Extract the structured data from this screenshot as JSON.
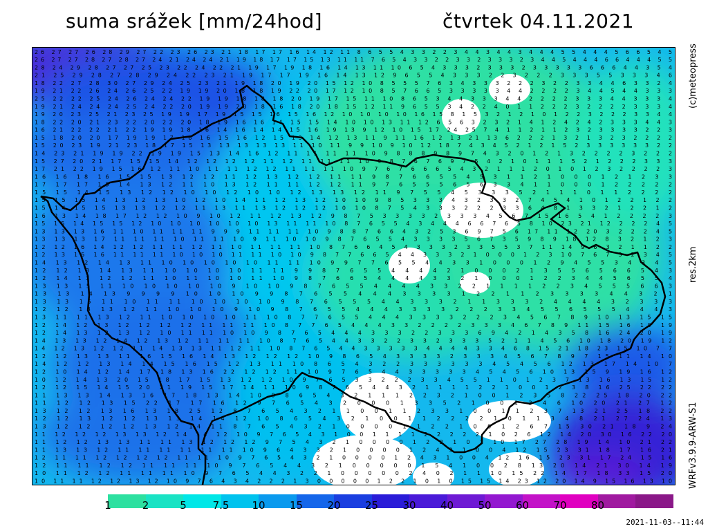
{
  "header": {
    "title": "suma srážek [mm/24hod]",
    "date": "čtvrtek 04.11.2021"
  },
  "side_labels": {
    "copyright": "(c)meteopress",
    "resolution": "res.2km",
    "model": "WRFv3.9.9-ARW-S1"
  },
  "legend": {
    "ticks": [
      "1",
      "2",
      "5",
      "7.5",
      "10",
      "15",
      "20",
      "25",
      "30",
      "40",
      "50",
      "60",
      "70",
      "80"
    ],
    "colors": [
      "#2de0a0",
      "#19e3c4",
      "#00e7e7",
      "#00c3ee",
      "#0a9aee",
      "#1566ea",
      "#1a3ee0",
      "#2a1cd8",
      "#4a1ad8",
      "#6e1ad4",
      "#9318d0",
      "#c312c8",
      "#e000c0",
      "#a01aa0",
      "#8a1888"
    ]
  },
  "timestamp": "2021-11-03--11:44",
  "map_rows": [
    "26 27 27 26 28 29 27 22 23 26 23 21 18 17 17 16 14 12 11 8 6 5 5 4 3 3 2 2 3 4 4 3 4 4 3 4 4 4 5 5 4 4 4 5 6 6 5 4 5",
    "26 27 27 28 27 28 27 24 21 24 24 21 19 18 17 17 15 13 11 11 7 6 5 4 3 3 2 2 3 3 2 3 3 3 2 3 4 4 5 4 4 4 6 6 4 4 4 5 5",
    "28 24 29 28 27 27 25 23 22 24 22 21 19 17 19 18 16 14 13 11 10 6 5 4 3 3 3 2 3 3 3 2 3 3 3 3 3 6 6 6 4 4 3 5 4",
    "21 25 29 28 27 28 29 24 22 23 21 19 17 17 19 16 14 13 12 9 6 5 5 4 3 3 3 2 2 3 2 2 2 3 3 3 5 5 3 3 3 4 6",
    "18 22 27 28 30 27 29 24 25 23 21 19 18 20 19 20 15 12 10 8 5 5 5 7 6 3 4 3 3 3 2 2 2 3 2 2 3 3 4 4 6 3 3 2 4",
    "19 21 22 26 24 26 25 22 19 19 20 18 18 19 22 20 17 12 10 8 5 7 6 6 5 3 3 3 3 3 4 4 2 2 2 2 3 4 4 5 4 4 3 3 3",
    "25 22 22 25 24 26 24 24 22 19 19 18 18 18 20 19 17 15 11 10 8 6 5 3 4 4 3 3 3 4 4 2 2 2 2 3 3 3 4 4 3 3 3 4",
    "19 21 24 24 24 25 24 22 20 19 19 20 18 16 18 20 18 15 12 11 9 6 5 5 3 4 2 2 4 0 1 1 2 2 2 3 2 2 2 2 3 3 3 4",
    "19 20 23 25 21 23 25 19 19 17 19 15 15 16 15 16 12 10 10 10 10 16 15 8 1 5 3 2 1 2 1 0 1 2 2 3 2 2 2 3 3 4 4",
    "18 22 20 21 23 22 20 22 20 18 19 16 16 14 15 15 14 10 10 13 11 12 6 5 6 3 2 3 2 1 4 1 2 4 2 4 2 3 3 3 4 4 3",
    "16 21 22 22 21 22 19 19 18 16 14 16 14 14 15 16 19 13 9 12 10 15 17 24 25 7 4 1 1 2 1 1 2 3 2 3 3 3 3 2 2 3",
    "15 18 20 20 17 19 19 17 16 16 15 16 12 15 13 14 12 13 11 9 11 16 12 13 21 13 6 2 2 2 1 3 2 1 3 2 3 2 2 2 2",
    "15 20 23 19 21 23 18 17 15 13 13 13 13 13 11 10 11 9 9 10 9 10 12 18 7 4 3 4 5 2 1 2 1 5 2 3 3 3 3 3 3 2 2",
    "14 23 21 19 19 22 19 19 15 13 14 16 12 11 11 11 11 10 9 8 8 8 9 8 9 7 4 3 2 0 1 2 1 3 2 2 2 2 3 2 2 2",
    "15 27 20 21 17 15 15 14 12 12 12 12 11 12 11 11 11 10 9 8 7 6 7 6 9 7 5 4 2 1 0 1 1 1 5 2 1 2 2 2 3 3 3",
    "17 21 22 19 15 16 12 11 10 11 11 12 12 11 11 11 10 9 7 6 7 6 6 6 5 4 3 2 1 1 1 2 0 1 0 1 2 3 2 2 2 2 3",
    "16 16 18 16 15 15 13 12 12 11 12 13 12 12 11 11 9 8 7 6 6 5 5 4 5 3 1 1 2 1 0 0 0 1 2 1 2 3 3",
    "17 17 17 15 14 13 12 11 10 13 12 11 11 12 12 11 9 7 6 5 5 5 6 5 6 3 3 4 1 1 0 0 0 1 2 2 2 2 2",
    "15 15 14 15 13 12 12 10 10 12 10 10 12 13 13 12 11 9 7 5 5 4 5 3 3 3 5 2 1 1 1 0 1 1 2 2 2 2",
    "15 15 15 14 13 12 13 10 12 10 14 11 12 13 12 10 10 9 8 5 3 3 3 4 3 2 3 3 2 7 4 5 4 1 0 1 2 2 1 2 2",
    "15 14 15 15 13 13 12 12 11 13 11 13 12 12 12 10 10 8 7 5 4 3 3 3 2 2 2 3 3 6 4 8 1 3 3 2 1 2 2 1 2",
    "16 13 14 18 17 12 12 10 9 10 12 11 12 13 12 9 8 7 5 3 3 3 3 2 3 3 3 4 5 6 7 15 16 5 4 1 2 2 2 2 3",
    "15 15 14 15 15 12 10 10 10 10 10 10 13 11 11 10 8 7 6 5 5 4 3 4 4 4 6 6 7 6 5 8 10 23 21 12 2 2 2 4 5",
    "13 13 13 16 11 10 11 11 11 9 9 9 11 11 11 10 9 8 8 7 6 6 4 3 2 5 3 6 9 7 5 6 17 11 12 20 3 2 2 2 4 5",
    "13 13 13 17 11 11 11 10 11 11 10 9 11 10 10 9 8 7 6 5 5 4 3 3 3 3 5 6 7 3 5 9 8 9 18 12 8 3 2 1 2 3",
    "12 12 16 14 12 12 11 11 12 11 10 11 11 11 10 8 7 6 6 4 5 4 3 3 3 2 3 3 5 5 3 7 11 14 9 6 3 2 1 1 2 2",
    "12 13 15 16 11 11 11 10 10 10 11 11 10 10 9 8 7 7 6 6 5 4 4 3 3 3 2 1 0 0 0 1 2 3 10 7 6 7 3 2 3 4 5",
    "14 13 12 14 13 11 10 10 10 10 10 11 11 10 9 9 7 7 6 5 5 4 4 3 3 1 0 0 0 1 2 9 4 5 5 3 4 3 4 5",
    "12 12 13 14 13 11 10 10 10 10 11 11 9 9 8 7 6 5 5 4 4 4 4 2 1 0 0 0 2 1 3 5 5 6 5 6 6 5 4 3",
    "12 14 13 12 12 11 10 11 10 10 11 10 9 8 7 6 6 5 4 4 4 4 3 3 2 1 0 0 0 1 2 2 3 4 4 5 6 5 5 4",
    "13 13 15 11 10 10 10 10 10 9 10 10 9 8 7 6 5 5 4 4 4 4 3 3 2 2 1 1 1 1 2 2 3 4 5 5 5 6 6 3",
    "13 13 14 13 9 9 9 9 10 10 10 9 9 8 7 6 5 5 4 4 4 3 3 3 3 1 2 2 1 1 2 3 3 3 3 4 4 3 2 1",
    "13 13 15 11 10 11 11 10 10 10 10 9 8 7 6 5 5 5 4 4 3 3 3 2 1 1 3 3 3 2 4 4 4 4 3 2 3 3 3",
    "12 12 13 13 12 11 10 10 10 9 10 9 8 7 6 5 5 4 4 4 3 3 3 3 2 2 2 3 3 4 5 5 6 5 5 5 4 4 4 3",
    "13 11 11 13 12 11 10 10 10 10 11 10 8 7 7 6 5 5 4 4 4 3 3 3 3 2 2 2 3 4 5 6 7 8 9 10 13 15 15",
    "12 14 12 13 12 12 12 12 11 11 11 10 8 7 7 6 5 4 4 4 3 3 2 2 2 2 3 3 3 4 6 7 8 9 11 15 16 19 19",
    "12 14 13 12 13 12 10 11 11 10 10 9 8 7 6 5 4 4 4 3 3 3 2 2 3 3 3 6 9 4 2 1 4 3 5 8 16 24 20 19",
    "14 13 13 12 14 12 13 12 11 11 11 10 8 7 6 5 4 4 3 3 2 2 3 3 2 3 3 3 5 2 1 1 4 5 6 10 18 20 19 12",
    "14 12 13 12 12 11 14 13 13 11 12 11 10 8 7 6 5 4 4 3 3 3 3 3 4 4 4 4 3 3 4 6 8 15 21 18 23 15 10 7 7",
    "12 12 13 13 11 16 15 16 14 13 12 12 12 10 9 8 6 5 4 3 3 3 3 2 3 3 3 4 5 6 7 8 9 7 15 11 14 10",
    "14 12 12 13 14 14 15 16 15 12 13 11 10 8 6 5 4 3 2 2 3 3 3 3 3 3 4 5 4 5 6 12 13 17 14 10 7",
    "12 10 14 12 14 17 18 13 16 22 12 12 11 10 9 7 6 5 4 4 3 3 3 3 3 4 5 4 5 6 10 13 15 9 19 16 12",
    "10 12 14 13 20 15 18 17 15 13 12 12 10 9 7 6 5 3 3 2 2 2 3 3 4 5 5 1 1 0 1 2 3 7 13 16 13 15 12",
    "12 12 15 14 15 20 21 19 15 17 14 11 10 9 8 7 6 5 4 4 3 2 1 1 1 1 2 2 1 0 0 1 2 3 8 16 25 22 22",
    "11 13 13 14 13 16 17 18 13 14 10 9 8 6 5 4 3 2 1 1 1 2 2 3 2 1 0 0 1 2 3 5 8 22 25 18 20 22",
    "11 12 12 13 15 22 17 17 16 12 9 7 6 5 4 3 2 0 0 0 1 3 3 5 2 1 0 0 1 3 4 6 10 20 21 27 12",
    "13 12 12 13 16 13 18 25 12 8 7 6 5 4 3 2 1 1 0 0 1 1 2 3 3 1 0 0 1 1 2 3 7 13 21 25 18 22",
    "12 12 13 12 12 13 13 14 14 12 10 8 6 5 4 3 2 1 0 0 1 1 2 2 2 2 1 0 1 1 3 4 8 21 27 24 13",
    "13 12 12 12 12 13 12 14 11 8 7 6 5 4 3 2 1 0 0 0 0 1 1 2 2 1 0 0 1 2 6 7 15 30 21 18 9 24",
    "11 12 12 12 13 13 12 14 14 12 10 9 7 6 5 4 3 1 0 0 1 1 1 1 2 2 2 2 2 1 0 2 6 12 14 20 30 16 22 20",
    "11 12 12 13 13 11 11 13 12 12 12 9 7 5 4 3 2 1 0 0 0 0 1 2 2 1 0 2 10 17 27 28 19 14 10 21 22",
    "11 13 13 12 11 11 11 11 11 11 10 9 6 4 3 3 2 1 0 0 0 0 1 2 4 3 1 0 0 4 12 15 23 31 18 17 16 21",
    "12 11 11 12 12 12 12 11 11 10 9 7 6 5 4 3 2 1 0 0 0 0 1 2 4 3 1 0 0 4 12 16 15 23 31 17 24 15 16",
    "12 11 11 12 12 11 11 11 10 9 7 6 5 4 4 3 2 1 0 0 0 0 0 1 5 4 1 0 0 2 8 13 20 14 21 30 14 19",
    "10 11 12 12 11 11 11 10 9 7 6 5 4 4 3 2 2 1 0 0 0 0 0 2 4 0 2 1 1 10 15 22 14 17 18 33 15 20",
    "10 11 11 12 12 13 12 10 9 7 6 4 3 4 2 2 2 1 3 0 0 0 0 0 1 2 2 1 0 1 0 15 15 14 23 12 20 14 9 15 16 13 10"
  ]
}
